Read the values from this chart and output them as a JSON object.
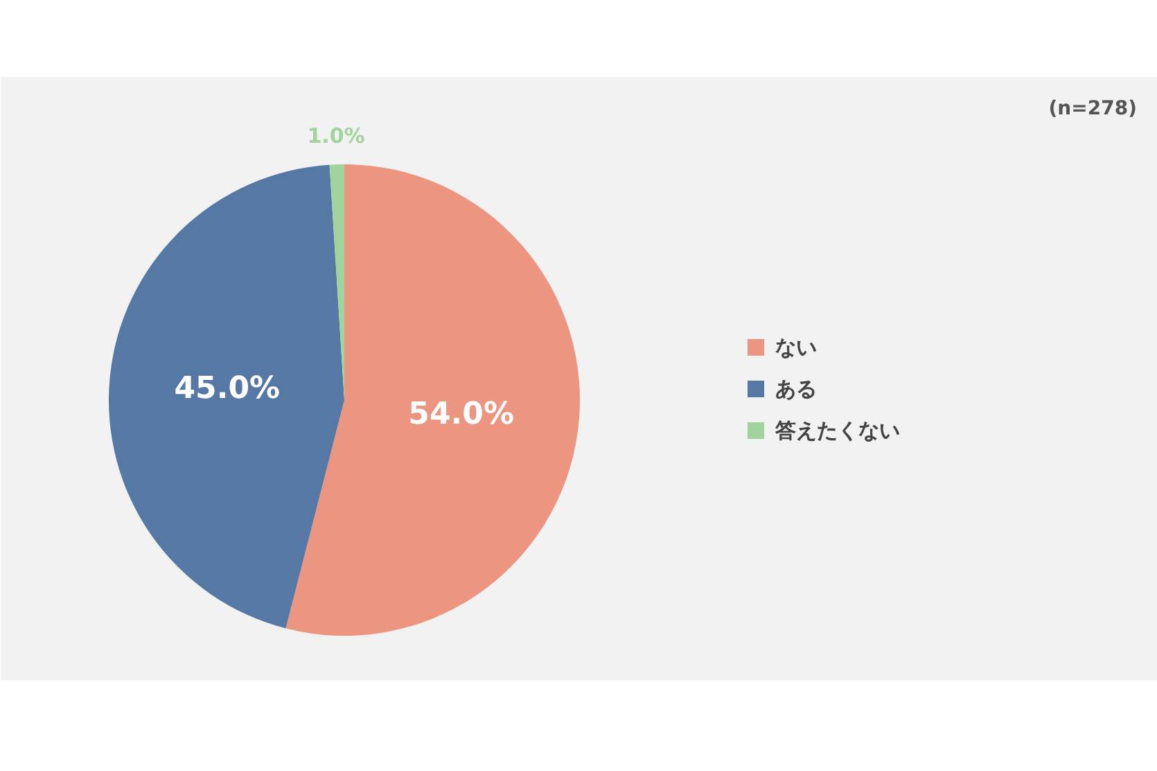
{
  "chart_data": {
    "type": "pie",
    "categories": [
      "ない",
      "ある",
      "答えたくない"
    ],
    "values": [
      54.0,
      45.0,
      1.0
    ],
    "colors": [
      "#ec9580",
      "#5578a5",
      "#a3d39c"
    ],
    "value_labels": [
      "54.0%",
      "45.0%",
      "1.0%"
    ],
    "annotations": [
      "(n=278)"
    ],
    "legend": "right"
  }
}
